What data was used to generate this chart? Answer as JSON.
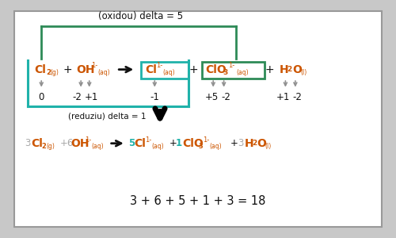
{
  "bg_color": "#c8c8c8",
  "panel_bg": "#ffffff",
  "teal": "#20b2aa",
  "dark_green": "#2e8b57",
  "orange": "#cc5500",
  "dark": "#111111",
  "gray": "#888888",
  "gray2": "#aaaaaa",
  "title": "(oxidou) delta = 5",
  "reduziu": "(reduziu) delta = 1",
  "equation": "3 + 6 + 5 + 1 + 3 = 18",
  "fig_w": 5.0,
  "fig_h": 3.0,
  "dpi": 100
}
